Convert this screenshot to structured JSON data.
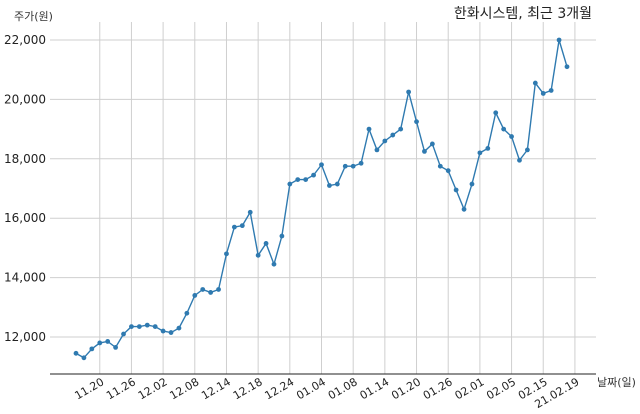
{
  "chart_data": {
    "type": "line",
    "title": "한화시스템, 최근 3개월",
    "ylabel": "주가(원)",
    "xlabel": "날짜(일)",
    "ylim": [
      10800,
      22800
    ],
    "yticks": [
      12000,
      14000,
      16000,
      18000,
      20000,
      22000
    ],
    "ytick_labels": [
      "12,000",
      "14,000",
      "16,000",
      "18,000",
      "20,000",
      "22,000"
    ],
    "xtick_labels": [
      "11.20",
      "11.26",
      "12.02",
      "12.08",
      "12.14",
      "12.18",
      "12.24",
      "01.04",
      "01.08",
      "01.14",
      "01.20",
      "01.26",
      "02.01",
      "02.05",
      "02.15",
      "21.02.19"
    ],
    "xtick_index": [
      3,
      7,
      11,
      15,
      19,
      23,
      27,
      31,
      35,
      39,
      43,
      47,
      51,
      55,
      59,
      63
    ],
    "grid": true,
    "color": "#2f7ab0",
    "series": [
      {
        "values": [
          11450,
          11300,
          11600,
          11800,
          11850,
          11650,
          12100,
          12350,
          12350,
          12400,
          12350,
          12200,
          12150,
          12300,
          12800,
          13400,
          13600,
          13500,
          13600,
          14800,
          15700,
          15750,
          16200,
          14750,
          15150,
          14450,
          15400,
          17150,
          17300,
          17300,
          17450,
          17800,
          17100,
          17150,
          17750,
          17750,
          17850,
          19000,
          18300,
          18600,
          18800,
          19000,
          20250,
          19250,
          18250,
          18500,
          17750,
          17600,
          16950,
          16300,
          17150,
          18200,
          18350,
          19550,
          19000,
          18750,
          17950,
          18300,
          20550,
          20200,
          20300,
          22000,
          21100
        ]
      }
    ]
  }
}
